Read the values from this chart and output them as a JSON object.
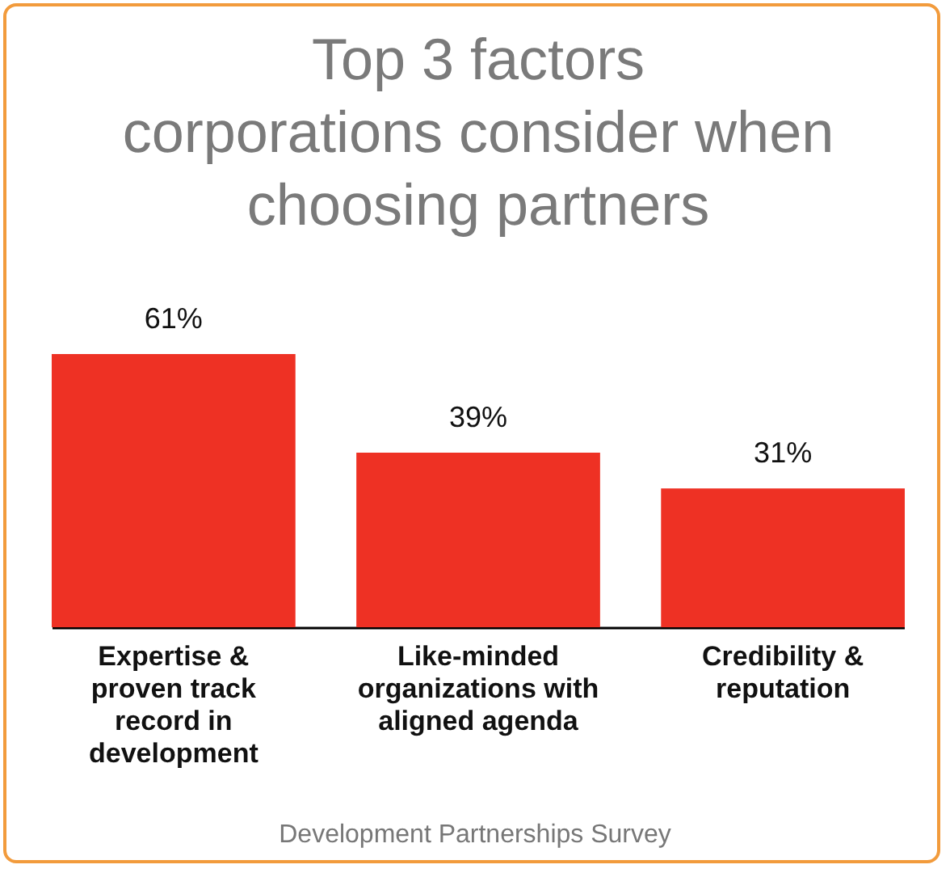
{
  "chart_data": {
    "type": "bar",
    "title": "Top 3 factors\ncorporations consider when\nchoosing partners",
    "categories": [
      "Expertise & proven track record in development",
      "Like-minded organizations with aligned agenda",
      "Credibility & reputation"
    ],
    "values": [
      61,
      39,
      31
    ],
    "value_labels": [
      "61%",
      "39%",
      "31%"
    ],
    "color": "#ee3124",
    "annotations": [
      "Development Partnerships Survey"
    ]
  }
}
